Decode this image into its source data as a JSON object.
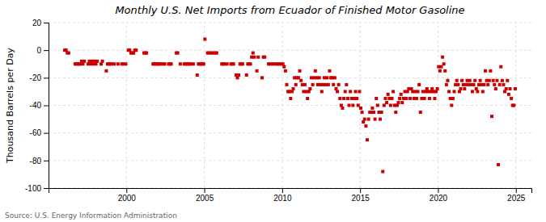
{
  "chart_data": {
    "type": "scatter",
    "title": "Monthly U.S. Net Imports from Ecuador of Finished Motor Gasoline",
    "y_label": "Thousand Barrels per Day",
    "annotations": [
      "Source: U.S. Energy Information Administration"
    ],
    "color": "#cc0000",
    "marker": "square",
    "grid": true,
    "xlim": [
      1995.0,
      2026.0
    ],
    "xticks": [
      2000,
      2005,
      2010,
      2015,
      2020,
      2025
    ],
    "ylim": [
      -100,
      20
    ],
    "yticks": [
      -100,
      -80,
      -60,
      -40,
      -20,
      0,
      20
    ],
    "x": [
      1996.041666666667,
      1996.125,
      1996.208333333333,
      1996.291666666667,
      1996.708333333333,
      1996.791666666667,
      1996.875,
      1996.958333333333,
      1997.041666666667,
      1997.125,
      1997.208333333333,
      1997.291666666667,
      1997.541666666667,
      1997.625,
      1997.708333333333,
      1997.791666666667,
      1997.875,
      1997.958333333333,
      1998.041666666667,
      1998.125,
      1998.375,
      1998.458333333333,
      1998.708333333333,
      1998.791666666667,
      1998.875,
      1998.958333333333,
      1999.041666666667,
      1999.208333333333,
      1999.458333333333,
      1999.708333333333,
      1999.791666666667,
      1999.958333333333,
      2000.125,
      2000.208333333333,
      2000.291666666667,
      2000.375,
      2000.458333333333,
      2000.541666666667,
      2000.625,
      2001.125,
      2001.208333333333,
      2001.291666666667,
      2001.708333333333,
      2001.791666666667,
      2001.875,
      2001.958333333333,
      2002.041666666667,
      2002.125,
      2002.208333333333,
      2002.375,
      2002.458333333333,
      2002.708333333333,
      2002.791666666667,
      2002.875,
      2003.208333333333,
      2003.291666666667,
      2003.458333333333,
      2003.708333333333,
      2003.791666666667,
      2003.875,
      2003.958333333333,
      2004.041666666667,
      2004.125,
      2004.291666666667,
      2004.541666666667,
      2004.625,
      2004.708333333333,
      2004.791666666667,
      2004.875,
      2004.958333333333,
      2005.041666666667,
      2005.208333333333,
      2005.291666666667,
      2005.458333333333,
      2005.541666666667,
      2005.708333333333,
      2005.791666666667,
      2006.125,
      2006.208333333333,
      2006.291666666667,
      2006.458333333333,
      2006.708333333333,
      2006.791666666667,
      2006.875,
      2007.041666666667,
      2007.125,
      2007.208333333333,
      2007.291666666667,
      2007.375,
      2007.458333333333,
      2007.708333333333,
      2007.791666666667,
      2007.875,
      2007.958333333333,
      2008.041666666667,
      2008.125,
      2008.208333333333,
      2008.375,
      2008.458333333333,
      2008.708333333333,
      2008.791666666667,
      2008.875,
      2009.125,
      2009.208333333333,
      2009.375,
      2009.458333333333,
      2009.625,
      2009.708333333333,
      2009.791666666667,
      2009.875,
      2010.041666666667,
      2010.125,
      2010.208333333333,
      2010.291666666667,
      2010.375,
      2010.458333333333,
      2010.541666666667,
      2010.625,
      2010.708333333333,
      2010.791666666667,
      2010.875,
      2010.958333333333,
      2011.041666666667,
      2011.125,
      2011.208333333333,
      2011.291666666667,
      2011.375,
      2011.458333333333,
      2011.541666666667,
      2011.625,
      2011.708333333333,
      2011.791666666667,
      2011.875,
      2011.958333333333,
      2012.041666666667,
      2012.125,
      2012.208333333333,
      2012.291666666667,
      2012.375,
      2012.458333333333,
      2012.541666666667,
      2012.625,
      2012.708333333333,
      2012.791666666667,
      2012.875,
      2012.958333333333,
      2013.041666666667,
      2013.125,
      2013.208333333333,
      2013.291666666667,
      2013.375,
      2013.458333333333,
      2013.541666666667,
      2013.625,
      2013.708333333333,
      2013.791666666667,
      2013.875,
      2013.958333333333,
      2014.041666666667,
      2014.125,
      2014.208333333333,
      2014.291666666667,
      2014.375,
      2014.458333333333,
      2014.541666666667,
      2014.625,
      2014.708333333333,
      2014.791666666667,
      2014.875,
      2014.958333333333,
      2015.041666666667,
      2015.125,
      2015.208333333333,
      2015.291666666667,
      2015.375,
      2015.458333333333,
      2015.541666666667,
      2015.625,
      2015.708333333333,
      2015.791666666667,
      2015.875,
      2015.958333333333,
      2016.041666666667,
      2016.125,
      2016.208333333333,
      2016.291666666667,
      2016.375,
      2016.458333333333,
      2016.541666666667,
      2016.625,
      2016.708333333333,
      2016.791666666667,
      2016.875,
      2016.958333333333,
      2017.041666666667,
      2017.125,
      2017.208333333333,
      2017.291666666667,
      2017.375,
      2017.458333333333,
      2017.541666666667,
      2017.625,
      2017.708333333333,
      2017.791666666667,
      2017.875,
      2017.958333333333,
      2018.041666666667,
      2018.125,
      2018.208333333333,
      2018.291666666667,
      2018.375,
      2018.458333333333,
      2018.541666666667,
      2018.625,
      2018.708333333333,
      2018.791666666667,
      2018.875,
      2018.958333333333,
      2019.041666666667,
      2019.125,
      2019.208333333333,
      2019.291666666667,
      2019.375,
      2019.458333333333,
      2019.541666666667,
      2019.625,
      2019.708333333333,
      2019.791666666667,
      2019.875,
      2019.958333333333,
      2020.041666666667,
      2020.125,
      2020.208333333333,
      2020.291666666667,
      2020.375,
      2020.458333333333,
      2020.541666666667,
      2020.625,
      2020.708333333333,
      2020.791666666667,
      2020.875,
      2020.958333333333,
      2021.041666666667,
      2021.125,
      2021.208333333333,
      2021.291666666667,
      2021.375,
      2021.458333333333,
      2021.541666666667,
      2021.625,
      2021.708333333333,
      2021.791666666667,
      2021.875,
      2021.958333333333,
      2022.041666666667,
      2022.125,
      2022.208333333333,
      2022.291666666667,
      2022.375,
      2022.458333333333,
      2022.541666666667,
      2022.625,
      2022.708333333333,
      2022.791666666667,
      2022.875,
      2022.958333333333,
      2023.041666666667,
      2023.125,
      2023.208333333333,
      2023.291666666667,
      2023.375,
      2023.458333333333,
      2023.541666666667,
      2023.625,
      2023.708333333333,
      2023.791666666667,
      2023.875,
      2023.958333333333,
      2024.041666666667,
      2024.125,
      2024.208333333333,
      2024.291666666667,
      2024.375,
      2024.458333333333,
      2024.541666666667,
      2024.625,
      2024.708333333333,
      2024.791666666667,
      2024.875,
      2024.958333333333
    ],
    "values": [
      0,
      0,
      -2,
      -2,
      -10,
      -10,
      -10,
      -10,
      -10,
      -8,
      -10,
      -8,
      -10,
      -8,
      -10,
      -8,
      -10,
      -8,
      -10,
      -8,
      -10,
      -8,
      -15,
      -10,
      -10,
      -10,
      -10,
      -10,
      -10,
      -10,
      -10,
      -10,
      0,
      0,
      -2,
      -2,
      -2,
      0,
      0,
      -2,
      -2,
      -2,
      -10,
      -10,
      -10,
      -10,
      -10,
      -10,
      -10,
      -10,
      -10,
      -10,
      -10,
      -10,
      -2,
      -2,
      -10,
      -10,
      -10,
      -10,
      -10,
      -10,
      -10,
      -10,
      -18,
      -10,
      -10,
      -10,
      -10,
      -10,
      8,
      -2,
      -2,
      -2,
      -2,
      -2,
      -2,
      -10,
      -10,
      -10,
      -10,
      -10,
      -10,
      -10,
      -18,
      -20,
      -18,
      -10,
      -10,
      -10,
      -18,
      -10,
      -10,
      -10,
      -5,
      -2,
      -5,
      -15,
      -5,
      -20,
      -5,
      -5,
      -10,
      -10,
      -10,
      -10,
      -10,
      -10,
      -10,
      -10,
      -10,
      -12,
      -15,
      -25,
      -30,
      -30,
      -35,
      -30,
      -28,
      -20,
      -25,
      -20,
      -20,
      -15,
      -22,
      -25,
      -30,
      -25,
      -30,
      -35,
      -30,
      -28,
      -20,
      -25,
      -20,
      -15,
      -20,
      -25,
      -20,
      -25,
      -30,
      -25,
      -20,
      -25,
      -20,
      -25,
      -15,
      -20,
      -20,
      -25,
      -20,
      -28,
      -30,
      -25,
      -35,
      -40,
      -42,
      -35,
      -30,
      -25,
      -35,
      -40,
      -30,
      -35,
      -40,
      -35,
      -30,
      -35,
      -40,
      -30,
      -42,
      -45,
      -52,
      -50,
      -55,
      -65,
      -50,
      -45,
      -45,
      -42,
      -45,
      -50,
      -35,
      -40,
      -45,
      -50,
      -45,
      -88,
      -40,
      -35,
      -38,
      -32,
      -35,
      -40,
      -35,
      -30,
      -40,
      -45,
      -40,
      -38,
      -35,
      -32,
      -38,
      -35,
      -30,
      -35,
      -30,
      -28,
      -35,
      -28,
      -30,
      -35,
      -30,
      -35,
      -30,
      -25,
      -45,
      -35,
      -30,
      -35,
      -30,
      -28,
      -30,
      -35,
      -30,
      -28,
      -30,
      -35,
      -30,
      -28,
      -12,
      -15,
      -12,
      -5,
      -10,
      -15,
      -25,
      -22,
      -30,
      -35,
      -40,
      -35,
      -30,
      -25,
      -22,
      -25,
      -30,
      -28,
      -22,
      -25,
      -28,
      -25,
      -22,
      -25,
      -22,
      -25,
      -30,
      -25,
      -22,
      -28,
      -30,
      -25,
      -22,
      -25,
      -30,
      -25,
      -15,
      -22,
      -25,
      -22,
      -15,
      -48,
      -22,
      -25,
      -28,
      -22,
      -83,
      -25,
      -12,
      -22,
      -25,
      -30,
      -28,
      -22,
      -32,
      -28,
      -35,
      -40,
      -40,
      -28
    ]
  }
}
